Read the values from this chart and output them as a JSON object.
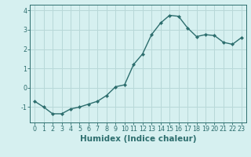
{
  "x": [
    0,
    1,
    2,
    3,
    4,
    5,
    6,
    7,
    8,
    9,
    10,
    11,
    12,
    13,
    14,
    15,
    16,
    17,
    18,
    19,
    20,
    21,
    22,
    23
  ],
  "y": [
    -0.7,
    -1.0,
    -1.35,
    -1.35,
    -1.1,
    -1.0,
    -0.85,
    -0.7,
    -0.4,
    0.05,
    0.15,
    1.2,
    1.75,
    2.75,
    3.35,
    3.75,
    3.7,
    3.1,
    2.65,
    2.75,
    2.7,
    2.35,
    2.25,
    2.6
  ],
  "line_color": "#2d6e6e",
  "marker": "D",
  "marker_size": 2.0,
  "linewidth": 1.0,
  "xlabel": "Humidex (Indice chaleur)",
  "ylim": [
    -1.8,
    4.3
  ],
  "xlim": [
    -0.5,
    23.5
  ],
  "yticks": [
    -1,
    0,
    1,
    2,
    3,
    4
  ],
  "xticks": [
    0,
    1,
    2,
    3,
    4,
    5,
    6,
    7,
    8,
    9,
    10,
    11,
    12,
    13,
    14,
    15,
    16,
    17,
    18,
    19,
    20,
    21,
    22,
    23
  ],
  "bg_color": "#d6f0f0",
  "grid_color": "#b8d8d8",
  "text_color": "#2d6e6e",
  "xlabel_fontsize": 7.5,
  "tick_fontsize": 5.8
}
